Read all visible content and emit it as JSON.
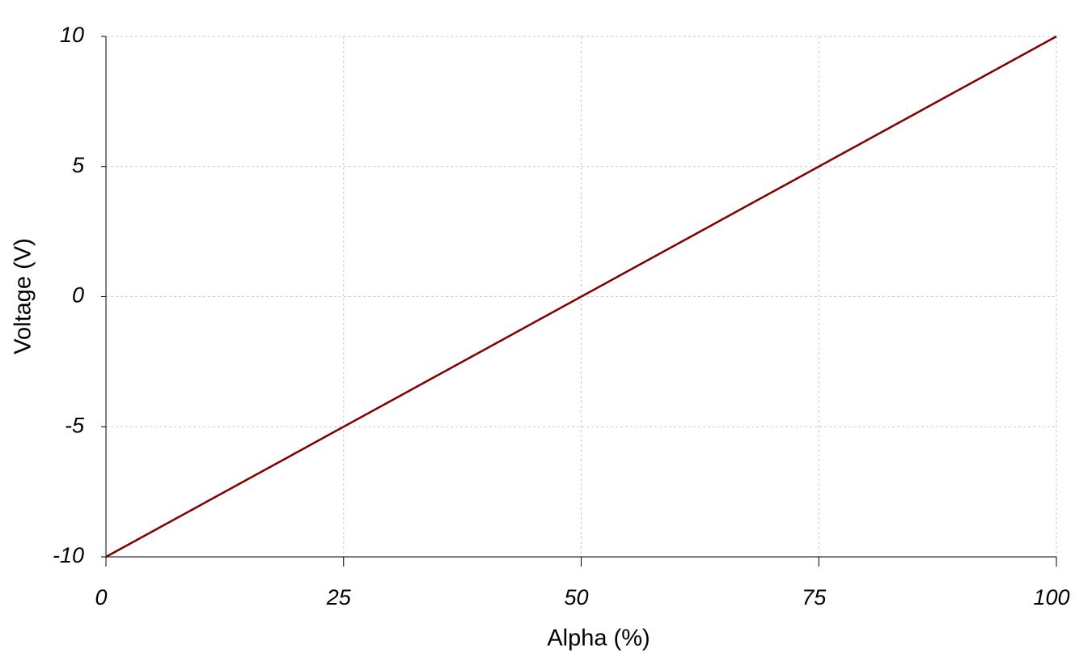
{
  "chart_data": {
    "type": "line",
    "x_label": "Alpha (%)",
    "y_label": "Voltage (V)",
    "x": [
      0,
      100
    ],
    "series": [
      {
        "name": "Voltage",
        "color": "#800000",
        "values": [
          -10,
          10
        ]
      }
    ],
    "xlim": [
      0,
      100
    ],
    "xticks": [
      0,
      25,
      50,
      75,
      100
    ],
    "ylim": [
      -10,
      10
    ],
    "yticks": [
      -10,
      -5,
      0,
      5,
      10
    ],
    "grid": true,
    "grid_color": "#c8c8c8"
  }
}
